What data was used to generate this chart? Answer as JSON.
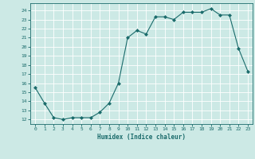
{
  "x": [
    0,
    1,
    2,
    3,
    4,
    5,
    6,
    7,
    8,
    9,
    10,
    11,
    12,
    13,
    14,
    15,
    16,
    17,
    18,
    19,
    20,
    21,
    22,
    23
  ],
  "y": [
    15.5,
    13.8,
    12.2,
    12.0,
    12.2,
    12.2,
    12.2,
    12.8,
    13.8,
    16.0,
    21.0,
    21.8,
    21.4,
    23.3,
    23.3,
    23.0,
    23.8,
    23.8,
    23.8,
    24.2,
    23.5,
    23.5,
    19.8,
    17.3
  ],
  "xlabel": "Humidex (Indice chaleur)",
  "ylabel": "",
  "bg_color": "#cce9e5",
  "grid_color": "#ffffff",
  "line_color": "#1a6b6b",
  "marker_color": "#1a6b6b",
  "ylim": [
    11.5,
    24.8
  ],
  "xlim": [
    -0.5,
    23.5
  ],
  "yticks": [
    12,
    13,
    14,
    15,
    16,
    17,
    18,
    19,
    20,
    21,
    22,
    23,
    24
  ],
  "xticks": [
    0,
    1,
    2,
    3,
    4,
    5,
    6,
    7,
    8,
    9,
    10,
    11,
    12,
    13,
    14,
    15,
    16,
    17,
    18,
    19,
    20,
    21,
    22,
    23
  ]
}
